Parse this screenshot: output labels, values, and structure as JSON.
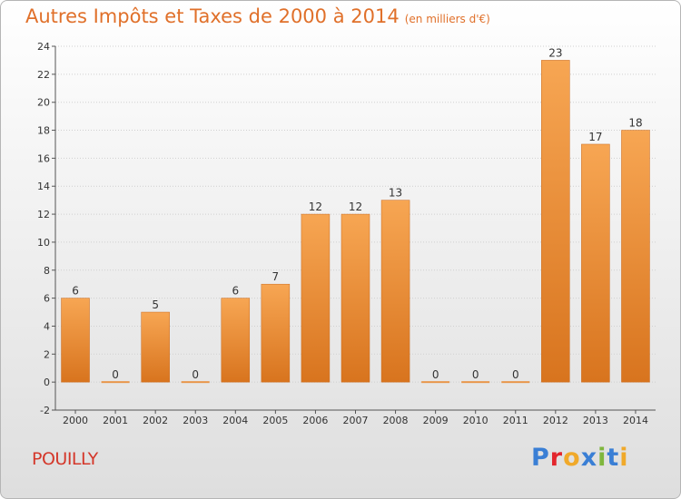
{
  "header": {
    "title": "Autres Impôts et Taxes de 2000 à 2014",
    "unit": "(en milliers d'€)"
  },
  "location": "POUILLY",
  "brand": {
    "letters": [
      "P",
      "r",
      "o",
      "x",
      "i",
      "t",
      "i"
    ],
    "colors": [
      "#3a7fd5",
      "#e3262d",
      "#f0a92a",
      "#3a7fd5",
      "#7fb63d",
      "#3a7fd5",
      "#f0a92a"
    ]
  },
  "colors": {
    "bar_top": "#f7a653",
    "bar_bottom": "#d8741e",
    "zero_bar": "#e8964a",
    "text": "#333333",
    "grid": "#d0d0d0"
  },
  "chart_data": {
    "type": "bar",
    "title": "Autres Impôts et Taxes de 2000 à 2014",
    "subtitle": "(en milliers d'€)",
    "categories": [
      "2000",
      "2001",
      "2002",
      "2003",
      "2004",
      "2005",
      "2006",
      "2007",
      "2008",
      "2009",
      "2010",
      "2011",
      "2012",
      "2013",
      "2014"
    ],
    "values": [
      6,
      0,
      5,
      0,
      6,
      7,
      12,
      12,
      13,
      0,
      0,
      0,
      23,
      17,
      18
    ],
    "labels": [
      "6",
      "0",
      "5",
      "0",
      "6",
      "7",
      "12",
      "12",
      "13",
      "0",
      "0",
      "0",
      "23",
      "17",
      "18"
    ],
    "ylim": [
      -2,
      24
    ],
    "yticks": [
      -2,
      0,
      2,
      4,
      6,
      8,
      10,
      12,
      14,
      16,
      18,
      20,
      22,
      24
    ],
    "xlabel": "",
    "ylabel": "",
    "grid": true,
    "legend": "none"
  }
}
